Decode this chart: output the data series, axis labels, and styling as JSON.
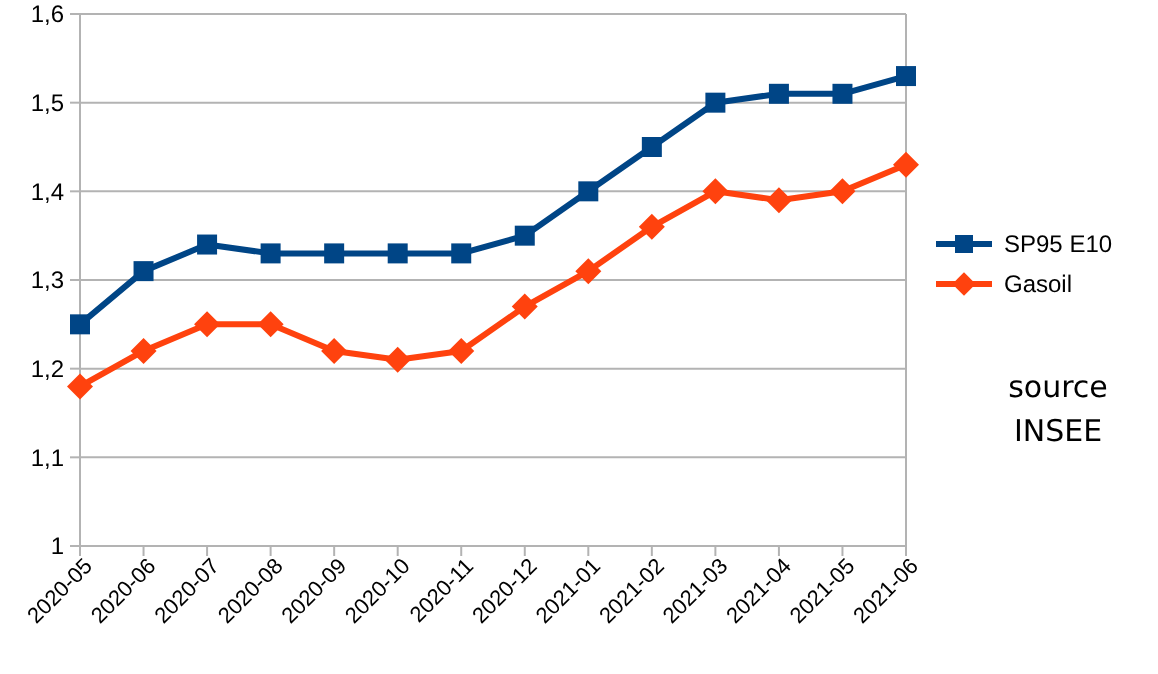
{
  "chart_data": {
    "type": "line",
    "categories": [
      "2020-05",
      "2020-06",
      "2020-07",
      "2020-08",
      "2020-09",
      "2020-10",
      "2020-11",
      "2020-12",
      "2021-01",
      "2021-02",
      "2021-03",
      "2021-04",
      "2021-05",
      "2021-06"
    ],
    "series": [
      {
        "name": "SP95 E10",
        "color": "#004586",
        "marker": "square",
        "values": [
          1.25,
          1.31,
          1.34,
          1.33,
          1.33,
          1.33,
          1.33,
          1.35,
          1.4,
          1.45,
          1.5,
          1.51,
          1.51,
          1.53
        ]
      },
      {
        "name": "Gasoil",
        "color": "#ff420e",
        "marker": "diamond",
        "values": [
          1.18,
          1.22,
          1.25,
          1.25,
          1.22,
          1.21,
          1.22,
          1.27,
          1.31,
          1.36,
          1.4,
          1.39,
          1.4,
          1.43
        ]
      }
    ],
    "ylim": [
      1,
      1.6
    ],
    "yticks": [
      1,
      {
        "value": 1.1,
        "label": "1,1"
      },
      {
        "value": 1.2,
        "label": "1,2"
      },
      {
        "value": 1.3,
        "label": "1,3"
      },
      {
        "value": 1.4,
        "label": "1,4"
      },
      {
        "value": 1.5,
        "label": "1,5"
      },
      {
        "value": 1.6,
        "label": "1,6"
      }
    ],
    "grid": "y",
    "legend": "right",
    "annotations": [
      "source INSEE"
    ]
  }
}
